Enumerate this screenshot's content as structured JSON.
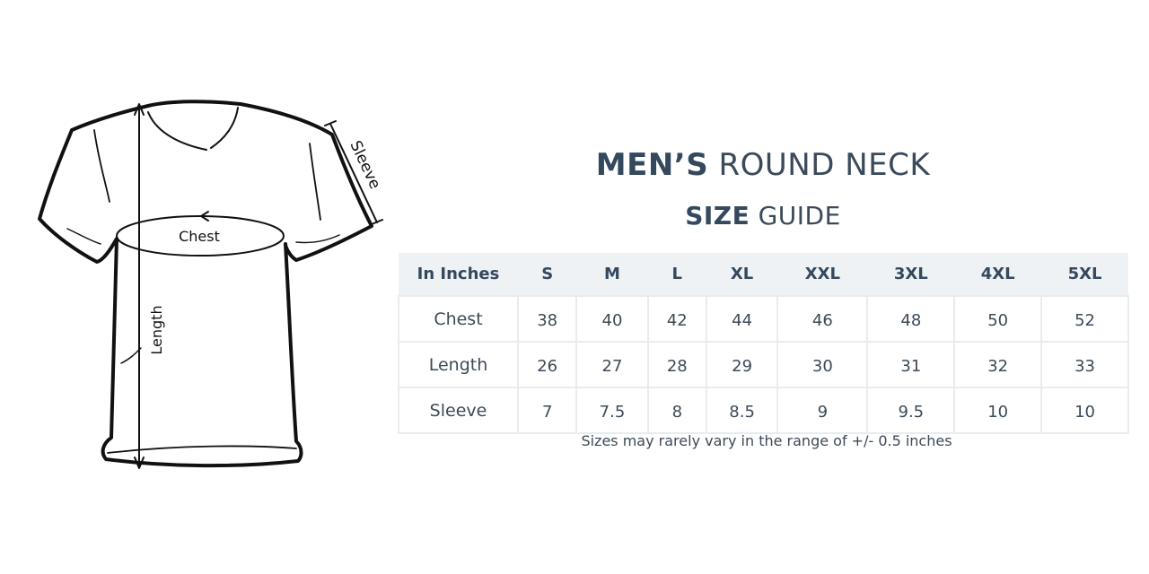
{
  "title": {
    "bold": "MEN’S",
    "light": "ROUND NECK"
  },
  "subtitle": {
    "bold": "SIZE",
    "light": "GUIDE"
  },
  "diagram": {
    "chest_label": "Chest",
    "length_label": "Length",
    "sleeve_label": "Sleeve"
  },
  "table": {
    "headers": [
      "In Inches",
      "S",
      "M",
      "L",
      "XL",
      "XXL",
      "3XL",
      "4XL",
      "5XL"
    ],
    "rows": [
      {
        "label": "Chest",
        "values": [
          "38",
          "40",
          "42",
          "44",
          "46",
          "48",
          "50",
          "52"
        ]
      },
      {
        "label": "Length",
        "values": [
          "26",
          "27",
          "28",
          "29",
          "30",
          "31",
          "32",
          "33"
        ]
      },
      {
        "label": "Sleeve",
        "values": [
          "7",
          "7.5",
          "8",
          "8.5",
          "9",
          "9.5",
          "10",
          "10"
        ]
      }
    ]
  },
  "note": "Sizes may rarely vary in the range of +/- 0.5 inches",
  "colors": {
    "heading": "#34495e",
    "header_bg": "#eef2f5",
    "border": "#e8ecef"
  }
}
